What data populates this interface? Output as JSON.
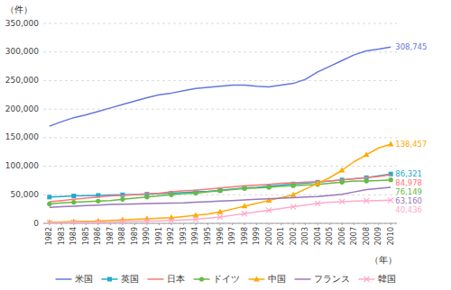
{
  "chart_data": {
    "type": "line",
    "ylabel": "（件）",
    "xlabel": "（年）",
    "x": [
      1982,
      1983,
      1984,
      1985,
      1986,
      1987,
      1988,
      1989,
      1990,
      1991,
      1992,
      1993,
      1994,
      1995,
      1996,
      1997,
      1998,
      1999,
      2000,
      2001,
      2002,
      2003,
      2004,
      2005,
      2006,
      2007,
      2008,
      2009,
      2010
    ],
    "xlim": [
      1981.5,
      2010.5
    ],
    "xticks": [
      1982,
      1983,
      1984,
      1985,
      1986,
      1987,
      1988,
      1989,
      1990,
      1991,
      1992,
      1993,
      1994,
      1995,
      1996,
      1997,
      1998,
      1999,
      2000,
      2001,
      2002,
      2003,
      2004,
      2005,
      2006,
      2007,
      2008,
      2009,
      2010
    ],
    "ylim": [
      0,
      350000
    ],
    "yticks": [
      0,
      {
        "value": 50000,
        "label": "50,000"
      },
      {
        "value": 100000,
        "label": "100,000"
      },
      {
        "value": 150000,
        "label": "150,000"
      },
      {
        "value": 200000,
        "label": "200,000"
      },
      {
        "value": 250000,
        "label": "250,000"
      },
      {
        "value": 300000,
        "label": "300,000"
      },
      {
        "value": 350000,
        "label": "350,000"
      }
    ],
    "grid": true,
    "legend": "bottom",
    "series": [
      {
        "name": "米国",
        "color": "#6677DD",
        "values": [
          170000,
          178000,
          185000,
          190000,
          196000,
          202000,
          208000,
          214000,
          220000,
          225000,
          228000,
          232000,
          236000,
          238000,
          240000,
          242000,
          242000,
          240000,
          239000,
          242000,
          245000,
          252000,
          265000,
          275000,
          285000,
          295000,
          302000,
          305000,
          308745
        ],
        "value_labels": [
          null,
          null,
          null,
          null,
          null,
          null,
          null,
          null,
          null,
          null,
          null,
          null,
          null,
          null,
          null,
          null,
          null,
          null,
          null,
          null,
          null,
          null,
          null,
          null,
          null,
          null,
          null,
          null,
          "308,745"
        ]
      },
      {
        "name": "英国",
        "color": "#22AACC",
        "marker": "square",
        "values": [
          46000,
          47000,
          48000,
          48500,
          49000,
          49500,
          50000,
          50500,
          51000,
          52000,
          53000,
          54000,
          55000,
          56000,
          58000,
          60000,
          62000,
          63000,
          65000,
          67000,
          69000,
          70000,
          72000,
          74000,
          76000,
          78000,
          80000,
          83000,
          86321
        ],
        "value_labels": [
          null,
          null,
          null,
          null,
          null,
          null,
          null,
          null,
          null,
          null,
          null,
          null,
          null,
          null,
          null,
          null,
          null,
          null,
          null,
          null,
          null,
          null,
          null,
          null,
          null,
          null,
          null,
          null,
          "86,321"
        ]
      },
      {
        "name": "日本",
        "color": "#FF7777",
        "values": [
          38000,
          40000,
          42000,
          44000,
          46000,
          48000,
          49000,
          50000,
          52000,
          53000,
          55000,
          57000,
          58000,
          60000,
          62000,
          64000,
          66000,
          67000,
          68000,
          70000,
          71000,
          72000,
          73000,
          74000,
          76000,
          78000,
          80000,
          82000,
          84978
        ],
        "value_labels": [
          null,
          null,
          null,
          null,
          null,
          null,
          null,
          null,
          null,
          null,
          null,
          null,
          null,
          null,
          null,
          null,
          null,
          null,
          null,
          null,
          null,
          null,
          null,
          null,
          null,
          null,
          null,
          null,
          "84,978"
        ]
      },
      {
        "name": "ドイツ",
        "color": "#66BB44",
        "marker": "circle",
        "values": [
          34000,
          36000,
          37000,
          38000,
          39000,
          40000,
          42000,
          44000,
          46000,
          48000,
          50000,
          52000,
          53000,
          55000,
          57000,
          59000,
          61000,
          62000,
          63000,
          65000,
          66000,
          67000,
          68000,
          70000,
          72000,
          74000,
          74000,
          75000,
          76149
        ],
        "value_labels": [
          null,
          null,
          null,
          null,
          null,
          null,
          null,
          null,
          null,
          null,
          null,
          null,
          null,
          null,
          null,
          null,
          null,
          null,
          null,
          null,
          null,
          null,
          null,
          null,
          null,
          null,
          null,
          null,
          "76,149"
        ]
      },
      {
        "name": "中国",
        "color": "#FFAA00",
        "marker": "triangle",
        "values": [
          2000,
          2500,
          3000,
          3500,
          4000,
          5000,
          6000,
          7000,
          8000,
          9000,
          10000,
          12000,
          14000,
          16000,
          20000,
          25000,
          30000,
          35000,
          40000,
          45000,
          50000,
          60000,
          70000,
          80000,
          93000,
          108000,
          120000,
          132000,
          138457
        ],
        "value_labels": [
          null,
          null,
          null,
          null,
          null,
          null,
          null,
          null,
          null,
          null,
          null,
          null,
          null,
          null,
          null,
          null,
          null,
          null,
          null,
          null,
          null,
          null,
          null,
          null,
          null,
          null,
          null,
          null,
          "138,457"
        ]
      },
      {
        "name": "フランス",
        "color": "#9977BB",
        "values": [
          28000,
          29000,
          30000,
          31000,
          32000,
          33000,
          33500,
          34000,
          34500,
          35000,
          35500,
          36000,
          37000,
          38000,
          39000,
          40000,
          41000,
          42000,
          43000,
          44000,
          45000,
          46000,
          47000,
          49000,
          51000,
          55000,
          59000,
          61000,
          63160
        ],
        "value_labels": [
          null,
          null,
          null,
          null,
          null,
          null,
          null,
          null,
          null,
          null,
          null,
          null,
          null,
          null,
          null,
          null,
          null,
          null,
          null,
          null,
          null,
          null,
          null,
          null,
          null,
          null,
          null,
          null,
          "63,160"
        ]
      },
      {
        "name": "韓国",
        "color": "#FFAACC",
        "marker": "x",
        "values": [
          1000,
          1200,
          1500,
          1800,
          2000,
          2500,
          3000,
          3500,
          4000,
          4500,
          5000,
          6000,
          7000,
          9000,
          11000,
          14000,
          17000,
          20000,
          23000,
          26000,
          29000,
          32000,
          35000,
          37000,
          38000,
          39000,
          39500,
          40000,
          40436
        ],
        "value_labels": [
          null,
          null,
          null,
          null,
          null,
          null,
          null,
          null,
          null,
          null,
          null,
          null,
          null,
          null,
          null,
          null,
          null,
          null,
          null,
          null,
          null,
          null,
          null,
          null,
          null,
          null,
          null,
          null,
          "40,436"
        ]
      }
    ]
  }
}
